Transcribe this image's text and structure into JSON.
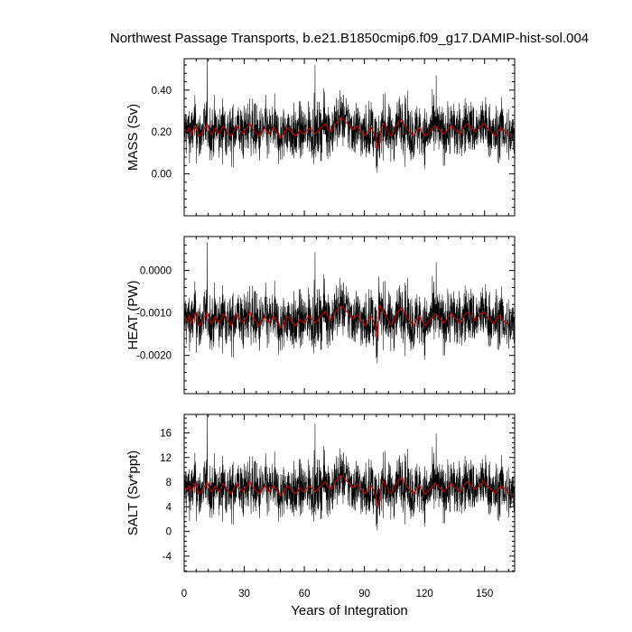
{
  "chart_data": {
    "type": "line",
    "title": "Northwest Passage Transports, b.e21.B1850cmip6.f09_g17.DAMIP-hist-sol.004",
    "xlabel": "Years of Integration",
    "xlim": [
      0,
      165
    ],
    "xticks": [
      0,
      30,
      60,
      90,
      120,
      150
    ],
    "xtick_labels": [
      "0",
      "30",
      "60",
      "90",
      "120",
      "150"
    ],
    "series_colors": {
      "monthly": "#000000",
      "annual": "#cc0000"
    },
    "panels": [
      {
        "id": "mass",
        "ylabel": "MASS (Sv)",
        "ylim": [
          -0.2,
          0.55
        ],
        "yticks": [
          0.0,
          0.2,
          0.4
        ],
        "ytick_labels": [
          "0.00",
          "0.20",
          "0.40"
        ],
        "mean": 0.205,
        "spread": 0.065,
        "annual_means": [
          0.21,
          0.2,
          0.22,
          0.19,
          0.21,
          0.23,
          0.2,
          0.18,
          0.19,
          0.21,
          0.22,
          0.24,
          0.21,
          0.19,
          0.2,
          0.22,
          0.2,
          0.19,
          0.21,
          0.23,
          0.22,
          0.2,
          0.19,
          0.18,
          0.2,
          0.22,
          0.23,
          0.21,
          0.2,
          0.19,
          0.21,
          0.22,
          0.24,
          0.23,
          0.21,
          0.2,
          0.19,
          0.18,
          0.2,
          0.21,
          0.22,
          0.2,
          0.19,
          0.21,
          0.22,
          0.21,
          0.19,
          0.18,
          0.17,
          0.19,
          0.2,
          0.22,
          0.21,
          0.2,
          0.19,
          0.18,
          0.19,
          0.21,
          0.2,
          0.19,
          0.2,
          0.21,
          0.22,
          0.21,
          0.2,
          0.19,
          0.2,
          0.21,
          0.22,
          0.23,
          0.24,
          0.22,
          0.21,
          0.2,
          0.22,
          0.24,
          0.25,
          0.26,
          0.27,
          0.26,
          0.25,
          0.24,
          0.23,
          0.22,
          0.21,
          0.22,
          0.23,
          0.21,
          0.2,
          0.19,
          0.18,
          0.2,
          0.21,
          0.22,
          0.2,
          0.18,
          0.12,
          0.15,
          0.22,
          0.24,
          0.23,
          0.21,
          0.19,
          0.18,
          0.2,
          0.22,
          0.24,
          0.25,
          0.26,
          0.24,
          0.23,
          0.21,
          0.2,
          0.19,
          0.18,
          0.2,
          0.21,
          0.22,
          0.2,
          0.19,
          0.18,
          0.19,
          0.2,
          0.21,
          0.22,
          0.23,
          0.22,
          0.21,
          0.2,
          0.19,
          0.2,
          0.21,
          0.22,
          0.23,
          0.22,
          0.21,
          0.2,
          0.19,
          0.2,
          0.22,
          0.23,
          0.24,
          0.23,
          0.22,
          0.21,
          0.2,
          0.21,
          0.22,
          0.23,
          0.24,
          0.23,
          0.22,
          0.21,
          0.2,
          0.19,
          0.18,
          0.2,
          0.21,
          0.22,
          0.21,
          0.2,
          0.19,
          0.18
        ]
      },
      {
        "id": "heat",
        "ylabel": "HEAT (PW)",
        "ylim": [
          -0.0029,
          0.0008
        ],
        "yticks": [
          -0.002,
          -0.001,
          0.0
        ],
        "ytick_labels": [
          "-0.0020",
          "-0.0010",
          "0.0000"
        ],
        "mean": -0.00115,
        "spread": 0.00033,
        "annual_means": [
          -0.0011,
          -0.0012,
          -0.00105,
          -0.00125,
          -0.00115,
          -0.001,
          -0.00118,
          -0.0013,
          -0.00125,
          -0.00112,
          -0.00108,
          -0.00098,
          -0.00112,
          -0.00125,
          -0.0012,
          -0.00108,
          -0.00118,
          -0.00124,
          -0.00114,
          -0.00102,
          -0.00106,
          -0.00116,
          -0.00124,
          -0.0013,
          -0.0012,
          -0.00108,
          -0.00102,
          -0.00112,
          -0.00118,
          -0.00124,
          -0.00114,
          -0.00108,
          -0.00098,
          -0.00102,
          -0.00112,
          -0.00118,
          -0.00124,
          -0.0013,
          -0.0012,
          -0.00114,
          -0.00108,
          -0.00118,
          -0.00124,
          -0.00114,
          -0.00108,
          -0.00112,
          -0.00124,
          -0.0013,
          -0.00136,
          -0.00126,
          -0.00118,
          -0.00108,
          -0.00112,
          -0.00118,
          -0.00124,
          -0.0013,
          -0.00124,
          -0.00114,
          -0.00118,
          -0.00124,
          -0.00118,
          -0.00112,
          -0.00106,
          -0.00112,
          -0.00118,
          -0.00124,
          -0.00118,
          -0.00112,
          -0.00106,
          -0.001,
          -0.00096,
          -0.00106,
          -0.00112,
          -0.00118,
          -0.00108,
          -0.00098,
          -0.00092,
          -0.00088,
          -0.00084,
          -0.00088,
          -0.00094,
          -0.00098,
          -0.00104,
          -0.00108,
          -0.00114,
          -0.00108,
          -0.00104,
          -0.00112,
          -0.00118,
          -0.00124,
          -0.0013,
          -0.0012,
          -0.00114,
          -0.00108,
          -0.00118,
          -0.00128,
          -0.0016,
          -0.0008,
          -0.0009,
          -0.00098,
          -0.00104,
          -0.00112,
          -0.00122,
          -0.00128,
          -0.00118,
          -0.00108,
          -0.00098,
          -0.00094,
          -0.00088,
          -0.00096,
          -0.00102,
          -0.00112,
          -0.00118,
          -0.00124,
          -0.0013,
          -0.0012,
          -0.00114,
          -0.00108,
          -0.00118,
          -0.00124,
          -0.0013,
          -0.00124,
          -0.00118,
          -0.00112,
          -0.00106,
          -0.00102,
          -0.00106,
          -0.00112,
          -0.00118,
          -0.00124,
          -0.00118,
          -0.00112,
          -0.00106,
          -0.00102,
          -0.00106,
          -0.00112,
          -0.00118,
          -0.00124,
          -0.00118,
          -0.00108,
          -0.00102,
          -0.00098,
          -0.00102,
          -0.00106,
          -0.00112,
          -0.00118,
          -0.00112,
          -0.00106,
          -0.001,
          -0.00098,
          -0.00102,
          -0.00108,
          -0.00114,
          -0.0012,
          -0.00126,
          -0.00118,
          -0.00112,
          -0.00106,
          -0.00112,
          -0.00118,
          -0.00124,
          -0.00128
        ]
      },
      {
        "id": "salt",
        "ylabel": "SALT (Sv*ppt)",
        "ylim": [
          -6.5,
          19
        ],
        "yticks": [
          -4,
          0,
          4,
          8,
          12,
          16
        ],
        "ytick_labels": [
          "-4",
          "0",
          "4",
          "8",
          "12",
          "16"
        ],
        "mean": 6.9,
        "spread": 2.2,
        "annual_means": [
          7.1,
          6.8,
          7.4,
          6.4,
          7.1,
          7.8,
          6.8,
          6.1,
          6.4,
          7.1,
          7.4,
          8.1,
          7.1,
          6.4,
          6.8,
          7.4,
          6.8,
          6.4,
          7.1,
          7.8,
          7.4,
          6.8,
          6.4,
          6.1,
          6.8,
          7.4,
          7.8,
          7.1,
          6.8,
          6.4,
          7.1,
          7.4,
          8.1,
          7.8,
          7.1,
          6.8,
          6.4,
          6.1,
          6.8,
          7.1,
          7.4,
          6.8,
          6.4,
          7.1,
          7.4,
          7.1,
          6.4,
          6.1,
          5.8,
          6.4,
          6.8,
          7.4,
          7.1,
          6.8,
          6.4,
          6.1,
          6.4,
          7.1,
          6.8,
          6.4,
          6.8,
          7.1,
          7.4,
          7.1,
          6.8,
          6.4,
          6.8,
          7.1,
          7.4,
          7.8,
          8.1,
          7.4,
          7.1,
          6.8,
          7.4,
          8.1,
          8.4,
          8.8,
          9.1,
          8.8,
          8.4,
          8.1,
          7.8,
          7.4,
          7.1,
          7.4,
          7.8,
          7.1,
          6.8,
          6.4,
          6.1,
          6.8,
          7.1,
          7.4,
          6.8,
          6.1,
          4.1,
          5.1,
          7.4,
          8.1,
          7.8,
          7.1,
          6.4,
          6.1,
          6.8,
          7.4,
          8.1,
          8.4,
          8.8,
          8.1,
          7.8,
          7.1,
          6.8,
          6.4,
          6.1,
          6.8,
          7.1,
          7.4,
          6.8,
          6.4,
          6.1,
          6.4,
          6.8,
          7.1,
          7.4,
          7.8,
          7.4,
          7.1,
          6.8,
          6.4,
          6.8,
          7.1,
          7.4,
          7.8,
          7.4,
          7.1,
          6.8,
          6.4,
          6.8,
          7.4,
          7.8,
          8.1,
          7.8,
          7.4,
          7.1,
          6.8,
          7.1,
          7.4,
          7.8,
          8.1,
          7.8,
          7.4,
          7.1,
          6.8,
          6.4,
          6.1,
          6.8,
          7.1,
          7.4,
          7.1,
          6.8,
          6.4,
          6.1
        ]
      }
    ]
  }
}
